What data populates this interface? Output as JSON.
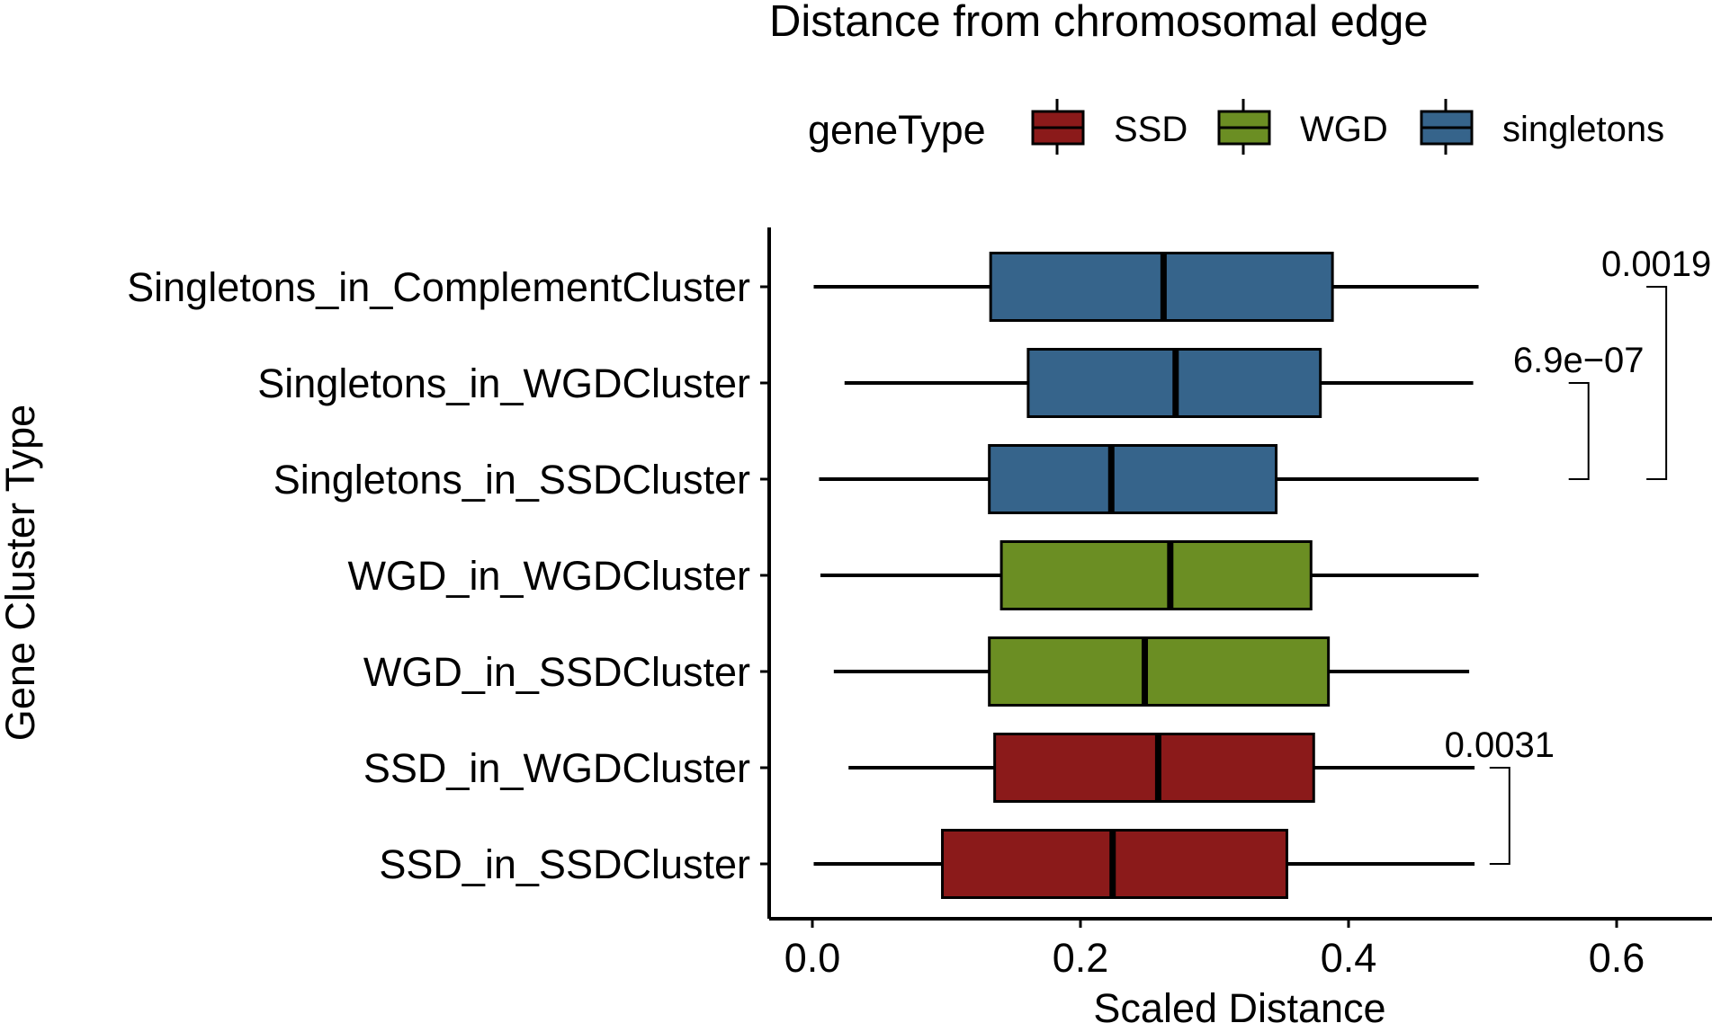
{
  "chart_data": {
    "type": "boxplot",
    "orientation": "horizontal",
    "title": "Distance from chromosomal edge",
    "xlabel": "Scaled Distance",
    "ylabel": "Gene Cluster Type",
    "xlim": [
      -0.03,
      0.67
    ],
    "x_ticks": [
      0.0,
      0.2,
      0.4,
      0.6
    ],
    "x_tick_labels": [
      "0.0",
      "0.2",
      "0.4",
      "0.6"
    ],
    "grid": false,
    "legend": {
      "title": "geneType",
      "placement": "top",
      "items": [
        {
          "label": "SSD",
          "color": "#8B1A1A"
        },
        {
          "label": "WGD",
          "color": "#6B8E23"
        },
        {
          "label": "singletons",
          "color": "#36648B"
        }
      ]
    },
    "categories": [
      "Singletons_in_ComplementCluster",
      "Singletons_in_WGDCluster",
      "Singletons_in_SSDCluster",
      "WGD_in_WGDCluster",
      "WGD_in_SSDCluster",
      "SSD_in_WGDCluster",
      "SSD_in_SSDCluster"
    ],
    "boxes": [
      {
        "category": "Singletons_in_ComplementCluster",
        "group": "singletons",
        "min": 0.001,
        "q1": 0.133,
        "median": 0.262,
        "q3": 0.388,
        "max": 0.497
      },
      {
        "category": "Singletons_in_WGDCluster",
        "group": "singletons",
        "min": 0.024,
        "q1": 0.161,
        "median": 0.271,
        "q3": 0.379,
        "max": 0.493
      },
      {
        "category": "Singletons_in_SSDCluster",
        "group": "singletons",
        "min": 0.005,
        "q1": 0.132,
        "median": 0.223,
        "q3": 0.346,
        "max": 0.497
      },
      {
        "category": "WGD_in_WGDCluster",
        "group": "WGD",
        "min": 0.006,
        "q1": 0.141,
        "median": 0.267,
        "q3": 0.372,
        "max": 0.497
      },
      {
        "category": "WGD_in_SSDCluster",
        "group": "WGD",
        "min": 0.016,
        "q1": 0.132,
        "median": 0.248,
        "q3": 0.385,
        "max": 0.49
      },
      {
        "category": "SSD_in_WGDCluster",
        "group": "SSD",
        "min": 0.027,
        "q1": 0.136,
        "median": 0.258,
        "q3": 0.374,
        "max": 0.494
      },
      {
        "category": "SSD_in_SSDCluster",
        "group": "SSD",
        "min": 0.001,
        "q1": 0.097,
        "median": 0.224,
        "q3": 0.354,
        "max": 0.494
      }
    ],
    "annotations": [
      {
        "label": "0.0019",
        "from": "Singletons_in_ComplementCluster",
        "to": "Singletons_in_SSDCluster",
        "x": 0.637
      },
      {
        "label": "6.9e−07",
        "from": "Singletons_in_WGDCluster",
        "to": "Singletons_in_SSDCluster",
        "x": 0.579
      },
      {
        "label": "0.0031",
        "from": "SSD_in_WGDCluster",
        "to": "SSD_in_SSDCluster",
        "x": 0.52
      }
    ]
  }
}
